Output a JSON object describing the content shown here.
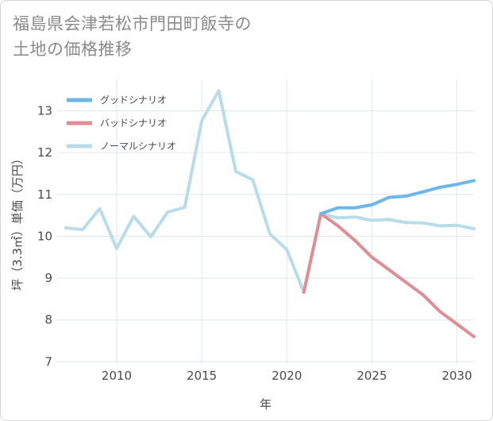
{
  "title_line1": "福島県会津若松市門田町飯寺の",
  "title_line2": "土地の価格推移",
  "chart_data": {
    "type": "line",
    "xlabel": "年",
    "ylabel": "坪（3.3㎡）単価（万円）",
    "xlim": [
      2006.5,
      2031
    ],
    "ylim": [
      6.95,
      13.75
    ],
    "xticks": [
      2010,
      2015,
      2020,
      2025,
      2030
    ],
    "yticks": [
      7,
      8,
      9,
      10,
      11,
      12,
      13
    ],
    "grid": true,
    "legend_position": "top-left",
    "series": [
      {
        "name": "グッドシナリオ",
        "color": "#6db6ec",
        "x": [
          2022,
          2023,
          2024,
          2025,
          2026,
          2027,
          2028,
          2029,
          2030,
          2031
        ],
        "values": [
          10.54,
          10.68,
          10.68,
          10.75,
          10.93,
          10.96,
          11.06,
          11.17,
          11.24,
          11.33
        ]
      },
      {
        "name": "バッドシナリオ",
        "color": "#de8e94",
        "x": [
          2021,
          2022,
          2023,
          2024,
          2025,
          2026,
          2027,
          2028,
          2029,
          2030,
          2031
        ],
        "values": [
          8.66,
          10.54,
          10.25,
          9.9,
          9.5,
          9.2,
          8.9,
          8.6,
          8.2,
          7.9,
          7.6
        ]
      },
      {
        "name": "ノーマルシナリオ",
        "color": "#b9dce9",
        "x": [
          2007,
          2008,
          2009,
          2010,
          2011,
          2012,
          2013,
          2014,
          2015,
          2016,
          2017,
          2018,
          2019,
          2020,
          2021,
          2022,
          2023,
          2024,
          2025,
          2026,
          2027,
          2028,
          2029,
          2030,
          2031
        ],
        "values": [
          10.2,
          10.16,
          10.66,
          9.71,
          10.48,
          9.99,
          10.58,
          10.69,
          12.76,
          13.48,
          11.55,
          11.35,
          10.06,
          9.68,
          8.66,
          10.54,
          10.44,
          10.46,
          10.38,
          10.4,
          10.33,
          10.32,
          10.25,
          10.26,
          10.18
        ]
      }
    ]
  }
}
